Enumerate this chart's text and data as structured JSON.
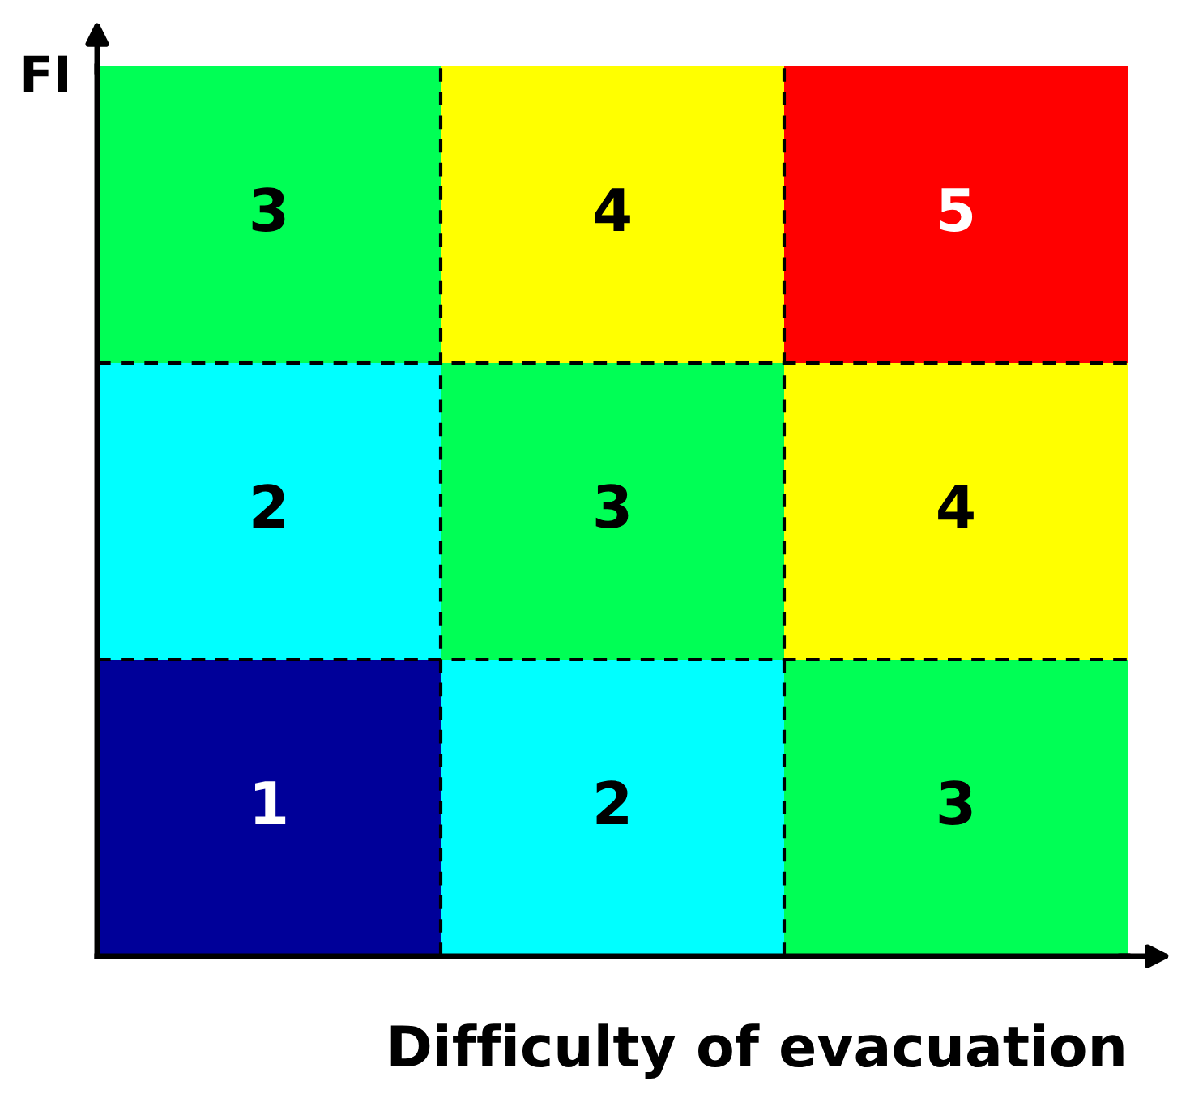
{
  "chart_data": {
    "type": "heatmap",
    "xlabel": "Difficulty of evacuation",
    "ylabel": "FI",
    "categories": [
      null,
      null,
      null
    ],
    "y_categories": [
      null,
      null,
      null
    ],
    "cells": [
      [
        3,
        4,
        5
      ],
      [
        2,
        3,
        4
      ],
      [
        1,
        2,
        3
      ]
    ],
    "colors": [
      "#000099",
      "#00ffff",
      "#00ff55",
      "#ffff00",
      "#ff0000"
    ],
    "data_labels": true,
    "grid": true,
    "line_style": "dashed",
    "tick_labels": false
  }
}
